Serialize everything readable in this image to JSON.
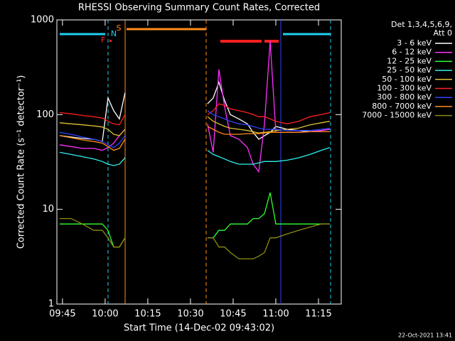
{
  "chart_data": {
    "type": "line",
    "title": "RHESSI Observing Summary Count Rates, Corrected",
    "x_label": "Start Time (14-Dec-02 09:43:02)",
    "y_label": "Corrected Count Rate (s⁻¹ detector⁻¹)",
    "legend_title": [
      "Det 1,3,4,5,6,9,",
      "Att 0"
    ],
    "legend_position": "right",
    "footer": "22-Oct-2021 13:41",
    "annotations": [
      {
        "text": "F",
        "color": "#ff2020"
      },
      {
        "text": "N",
        "color": "#20d0f0"
      },
      {
        "text": "S",
        "color": "#ff8c1a"
      }
    ],
    "y_scale": "log",
    "xlim": [
      43.03,
      143
    ],
    "xticks": [
      {
        "value": 45,
        "label": "09:45"
      },
      {
        "value": 60,
        "label": "10:00"
      },
      {
        "value": 75,
        "label": "10:15"
      },
      {
        "value": 90,
        "label": "10:30"
      },
      {
        "value": 105,
        "label": "10:45"
      },
      {
        "value": 120,
        "label": "11:00"
      },
      {
        "value": 135,
        "label": "11:15"
      }
    ],
    "ylim": [
      1,
      1000
    ],
    "yticks": [
      1,
      10,
      100,
      1000
    ],
    "x": [
      44,
      48,
      52,
      56,
      59,
      61,
      63,
      65,
      67,
      80,
      96,
      98,
      100,
      102,
      104,
      107,
      110,
      112,
      114,
      116,
      118,
      120,
      124,
      128,
      132,
      136,
      139
    ],
    "series": [
      {
        "name": "3 - 6 keV",
        "color": "#ffffff",
        "values": [
          60,
          58,
          56,
          55,
          52,
          150,
          110,
          90,
          170,
          null,
          130,
          150,
          220,
          140,
          100,
          90,
          80,
          65,
          55,
          60,
          65,
          75,
          70,
          68,
          66,
          68,
          70
        ]
      },
      {
        "name": "6 - 12 keV",
        "color": "#ff30ff",
        "values": [
          48,
          46,
          44,
          44,
          42,
          45,
          50,
          60,
          70,
          null,
          80,
          40,
          300,
          120,
          60,
          55,
          45,
          30,
          25,
          80,
          600,
          65,
          65,
          65,
          66,
          68,
          70
        ]
      },
      {
        "name": "12 - 25 keV",
        "color": "#30ff30",
        "values": [
          7,
          7,
          7,
          7,
          7,
          6,
          4,
          4,
          5,
          null,
          5,
          5,
          6,
          6,
          7,
          7,
          7,
          8,
          8,
          9,
          15,
          7,
          7,
          7,
          7,
          7,
          7
        ]
      },
      {
        "name": "25 - 50 keV",
        "color": "#30f0f0",
        "values": [
          40,
          38,
          36,
          34,
          32,
          30,
          29,
          30,
          35,
          null,
          42,
          38,
          36,
          34,
          32,
          30,
          30,
          30,
          31,
          32,
          32,
          32,
          33,
          35,
          38,
          42,
          45
        ]
      },
      {
        "name": "50 - 100 keV",
        "color": "#e0c030",
        "values": [
          82,
          80,
          78,
          76,
          74,
          70,
          62,
          60,
          70,
          null,
          95,
          85,
          80,
          75,
          72,
          70,
          68,
          66,
          64,
          65,
          66,
          68,
          70,
          72,
          78,
          82,
          85
        ]
      },
      {
        "name": "100 - 300 keV",
        "color": "#ff2020",
        "values": [
          105,
          102,
          98,
          95,
          92,
          85,
          80,
          78,
          100,
          null,
          100,
          110,
          130,
          125,
          115,
          110,
          105,
          100,
          95,
          95,
          90,
          85,
          80,
          85,
          95,
          100,
          105
        ]
      },
      {
        "name": "300 - 800 keV",
        "color": "#3040ff",
        "values": [
          65,
          62,
          58,
          55,
          52,
          48,
          45,
          50,
          60,
          null,
          110,
          100,
          95,
          90,
          85,
          80,
          78,
          75,
          72,
          70,
          70,
          70,
          68,
          68,
          68,
          70,
          72
        ]
      },
      {
        "name": "800 - 7000 keV",
        "color": "#ff8c1a",
        "values": [
          60,
          57,
          54,
          52,
          50,
          46,
          42,
          44,
          55,
          null,
          75,
          70,
          65,
          62,
          62,
          62,
          63,
          63,
          63,
          64,
          65,
          65,
          65,
          65,
          66,
          66,
          66
        ]
      },
      {
        "name": "7000 - 15000 keV",
        "color": "#8c8c10",
        "values": [
          8,
          8,
          7,
          6,
          6,
          5,
          4,
          4,
          5,
          null,
          5,
          5,
          4,
          4,
          3.5,
          3,
          3,
          3,
          3.2,
          3.5,
          5,
          5,
          5.5,
          6,
          6.5,
          7,
          7
        ]
      }
    ]
  }
}
